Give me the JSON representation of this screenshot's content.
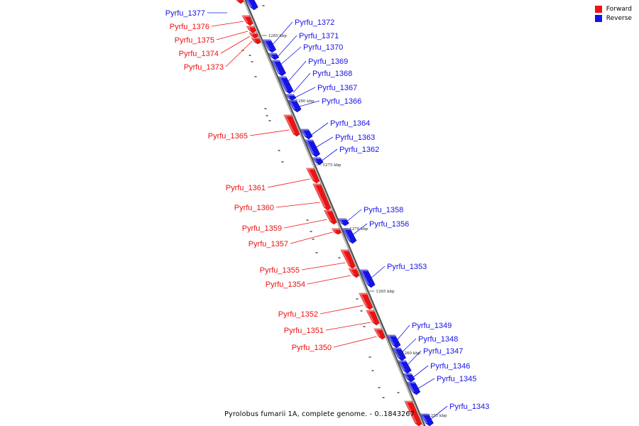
{
  "colors": {
    "forward": "#ee1111",
    "reverse": "#1414e6",
    "axis": "#8a8a8a"
  },
  "legend": {
    "forward_label": "Forward",
    "reverse_label": "Reverse"
  },
  "caption": "Pyrolobus fumarii 1A, complete genome. - 0..1843267",
  "scale_ticks": [
    "1285 kbp",
    "1280 kbp",
    "1275 kbp",
    "1270 kbp",
    "1265 kbp",
    "1260 kbp",
    "1255 kbp"
  ],
  "forward_genes": [
    "Pyrfu_1376",
    "Pyrfu_1375",
    "Pyrfu_1374",
    "Pyrfu_1373",
    "Pyrfu_1365",
    "Pyrfu_1361",
    "Pyrfu_1360",
    "Pyrfu_1359",
    "Pyrfu_1357",
    "Pyrfu_1355",
    "Pyrfu_1354",
    "Pyrfu_1352",
    "Pyrfu_1351",
    "Pyrfu_1350"
  ],
  "reverse_genes": [
    "Pyrfu_1377",
    "Pyrfu_1372",
    "Pyrfu_1371",
    "Pyrfu_1370",
    "Pyrfu_1369",
    "Pyrfu_1368",
    "Pyrfu_1367",
    "Pyrfu_1366",
    "Pyrfu_1364",
    "Pyrfu_1363",
    "Pyrfu_1362",
    "Pyrfu_1358",
    "Pyrfu_1356",
    "Pyrfu_1353",
    "Pyrfu_1349",
    "Pyrfu_1348",
    "Pyrfu_1347",
    "Pyrfu_1346",
    "Pyrfu_1345",
    "Pyrfu_1343"
  ]
}
